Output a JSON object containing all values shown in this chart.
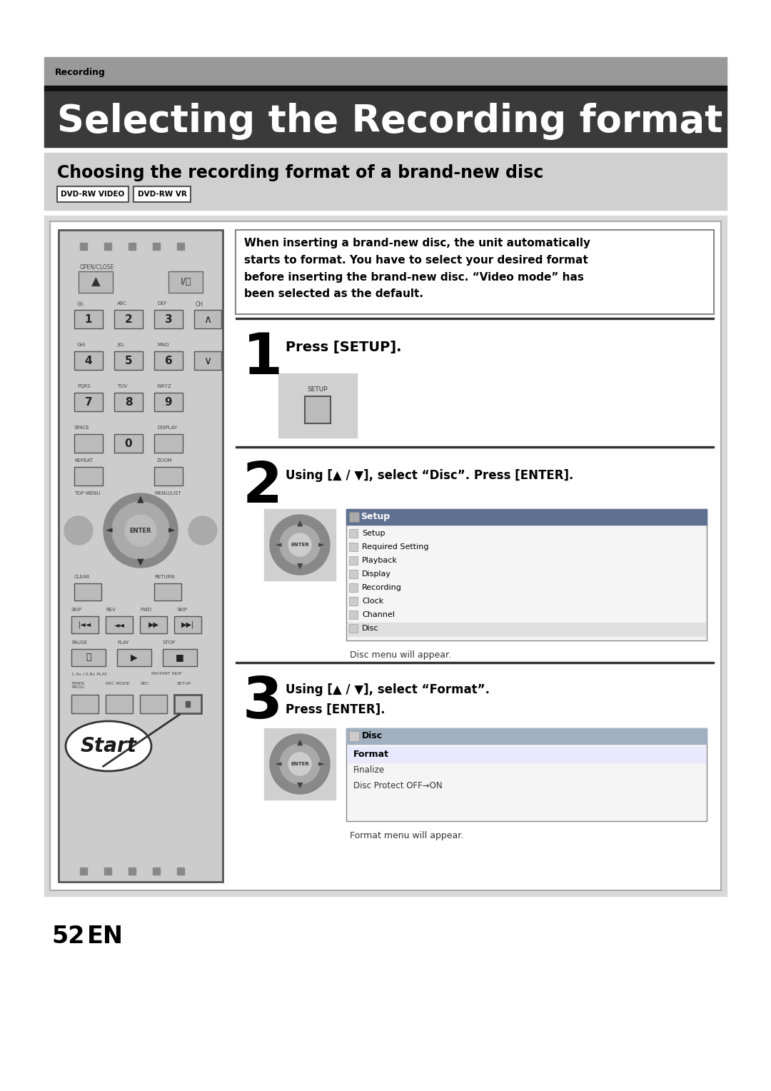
{
  "page_bg": "#ffffff",
  "header_bar_color": "#999999",
  "header_bar_text": "Recording",
  "black_bar_color": "#111111",
  "title_bar_color": "#3a3a3a",
  "title_text": "Selecting the Recording format",
  "title_text_color": "#ffffff",
  "subtitle_bar_color": "#d0d0d0",
  "subtitle_text": "Choosing the recording format of a brand-new disc",
  "badge1_text": "DVD-RW VIDEO",
  "badge2_text": "DVD-RW VR",
  "content_bg": "#d8d8d8",
  "intro_text_line1": "When inserting a brand-new disc, the unit automatically",
  "intro_text_line2": "starts to format. You have to select your desired format",
  "intro_text_line3": "before inserting the brand-new disc. “Video mode” has",
  "intro_text_line4": "been selected as the default.",
  "step1_num": "1",
  "step1_text": "Press [SETUP].",
  "step2_num": "2",
  "step2_text": "Using [▲ / ▼], select “Disc”. Press [ENTER].",
  "step2_sub": "Disc menu will appear.",
  "step3_num": "3",
  "step3_line1": "Using [▲ / ▼], select “Format”.",
  "step3_line2": "Press [ENTER].",
  "step3_sub": "Format menu will appear.",
  "page_num": "52",
  "page_en": "EN",
  "menu_setup_items": [
    "Setup",
    "Required Setting",
    "Playback",
    "Display",
    "Recording",
    "Clock",
    "Channel",
    "Disc"
  ],
  "menu_disc_items": [
    "Format",
    "Finalize",
    "Disc Protect OFF→ON"
  ],
  "menu_disc_header": "Disc"
}
